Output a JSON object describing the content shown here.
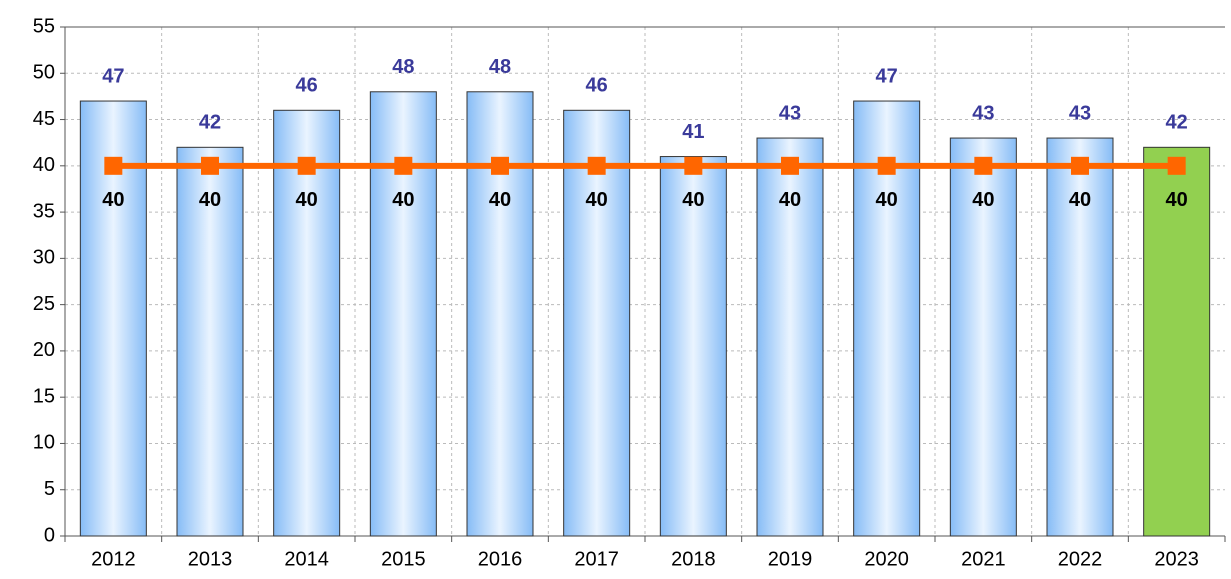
{
  "chart_data": {
    "type": "bar",
    "categories": [
      "2012",
      "2013",
      "2014",
      "2015",
      "2016",
      "2017",
      "2018",
      "2019",
      "2020",
      "2021",
      "2022",
      "2023"
    ],
    "series": [
      {
        "type": "bar",
        "color": "#8dc0f7",
        "colors": [
          "#8dc0f7",
          "#8dc0f7",
          "#8dc0f7",
          "#8dc0f7",
          "#8dc0f7",
          "#8dc0f7",
          "#8dc0f7",
          "#8dc0f7",
          "#8dc0f7",
          "#8dc0f7",
          "#8dc0f7",
          "#92d050"
        ],
        "label_color": "#3a3a9a",
        "values": [
          47,
          42,
          46,
          48,
          48,
          46,
          41,
          43,
          47,
          43,
          43,
          42
        ]
      },
      {
        "type": "line",
        "color": "#ff6600",
        "label_color": "#000000",
        "values": [
          40,
          40,
          40,
          40,
          40,
          40,
          40,
          40,
          40,
          40,
          40,
          40
        ]
      }
    ],
    "ylim": [
      0,
      55
    ],
    "yticks": [
      0,
      5,
      10,
      15,
      20,
      25,
      30,
      35,
      40,
      45,
      50,
      55
    ],
    "grid": true
  }
}
